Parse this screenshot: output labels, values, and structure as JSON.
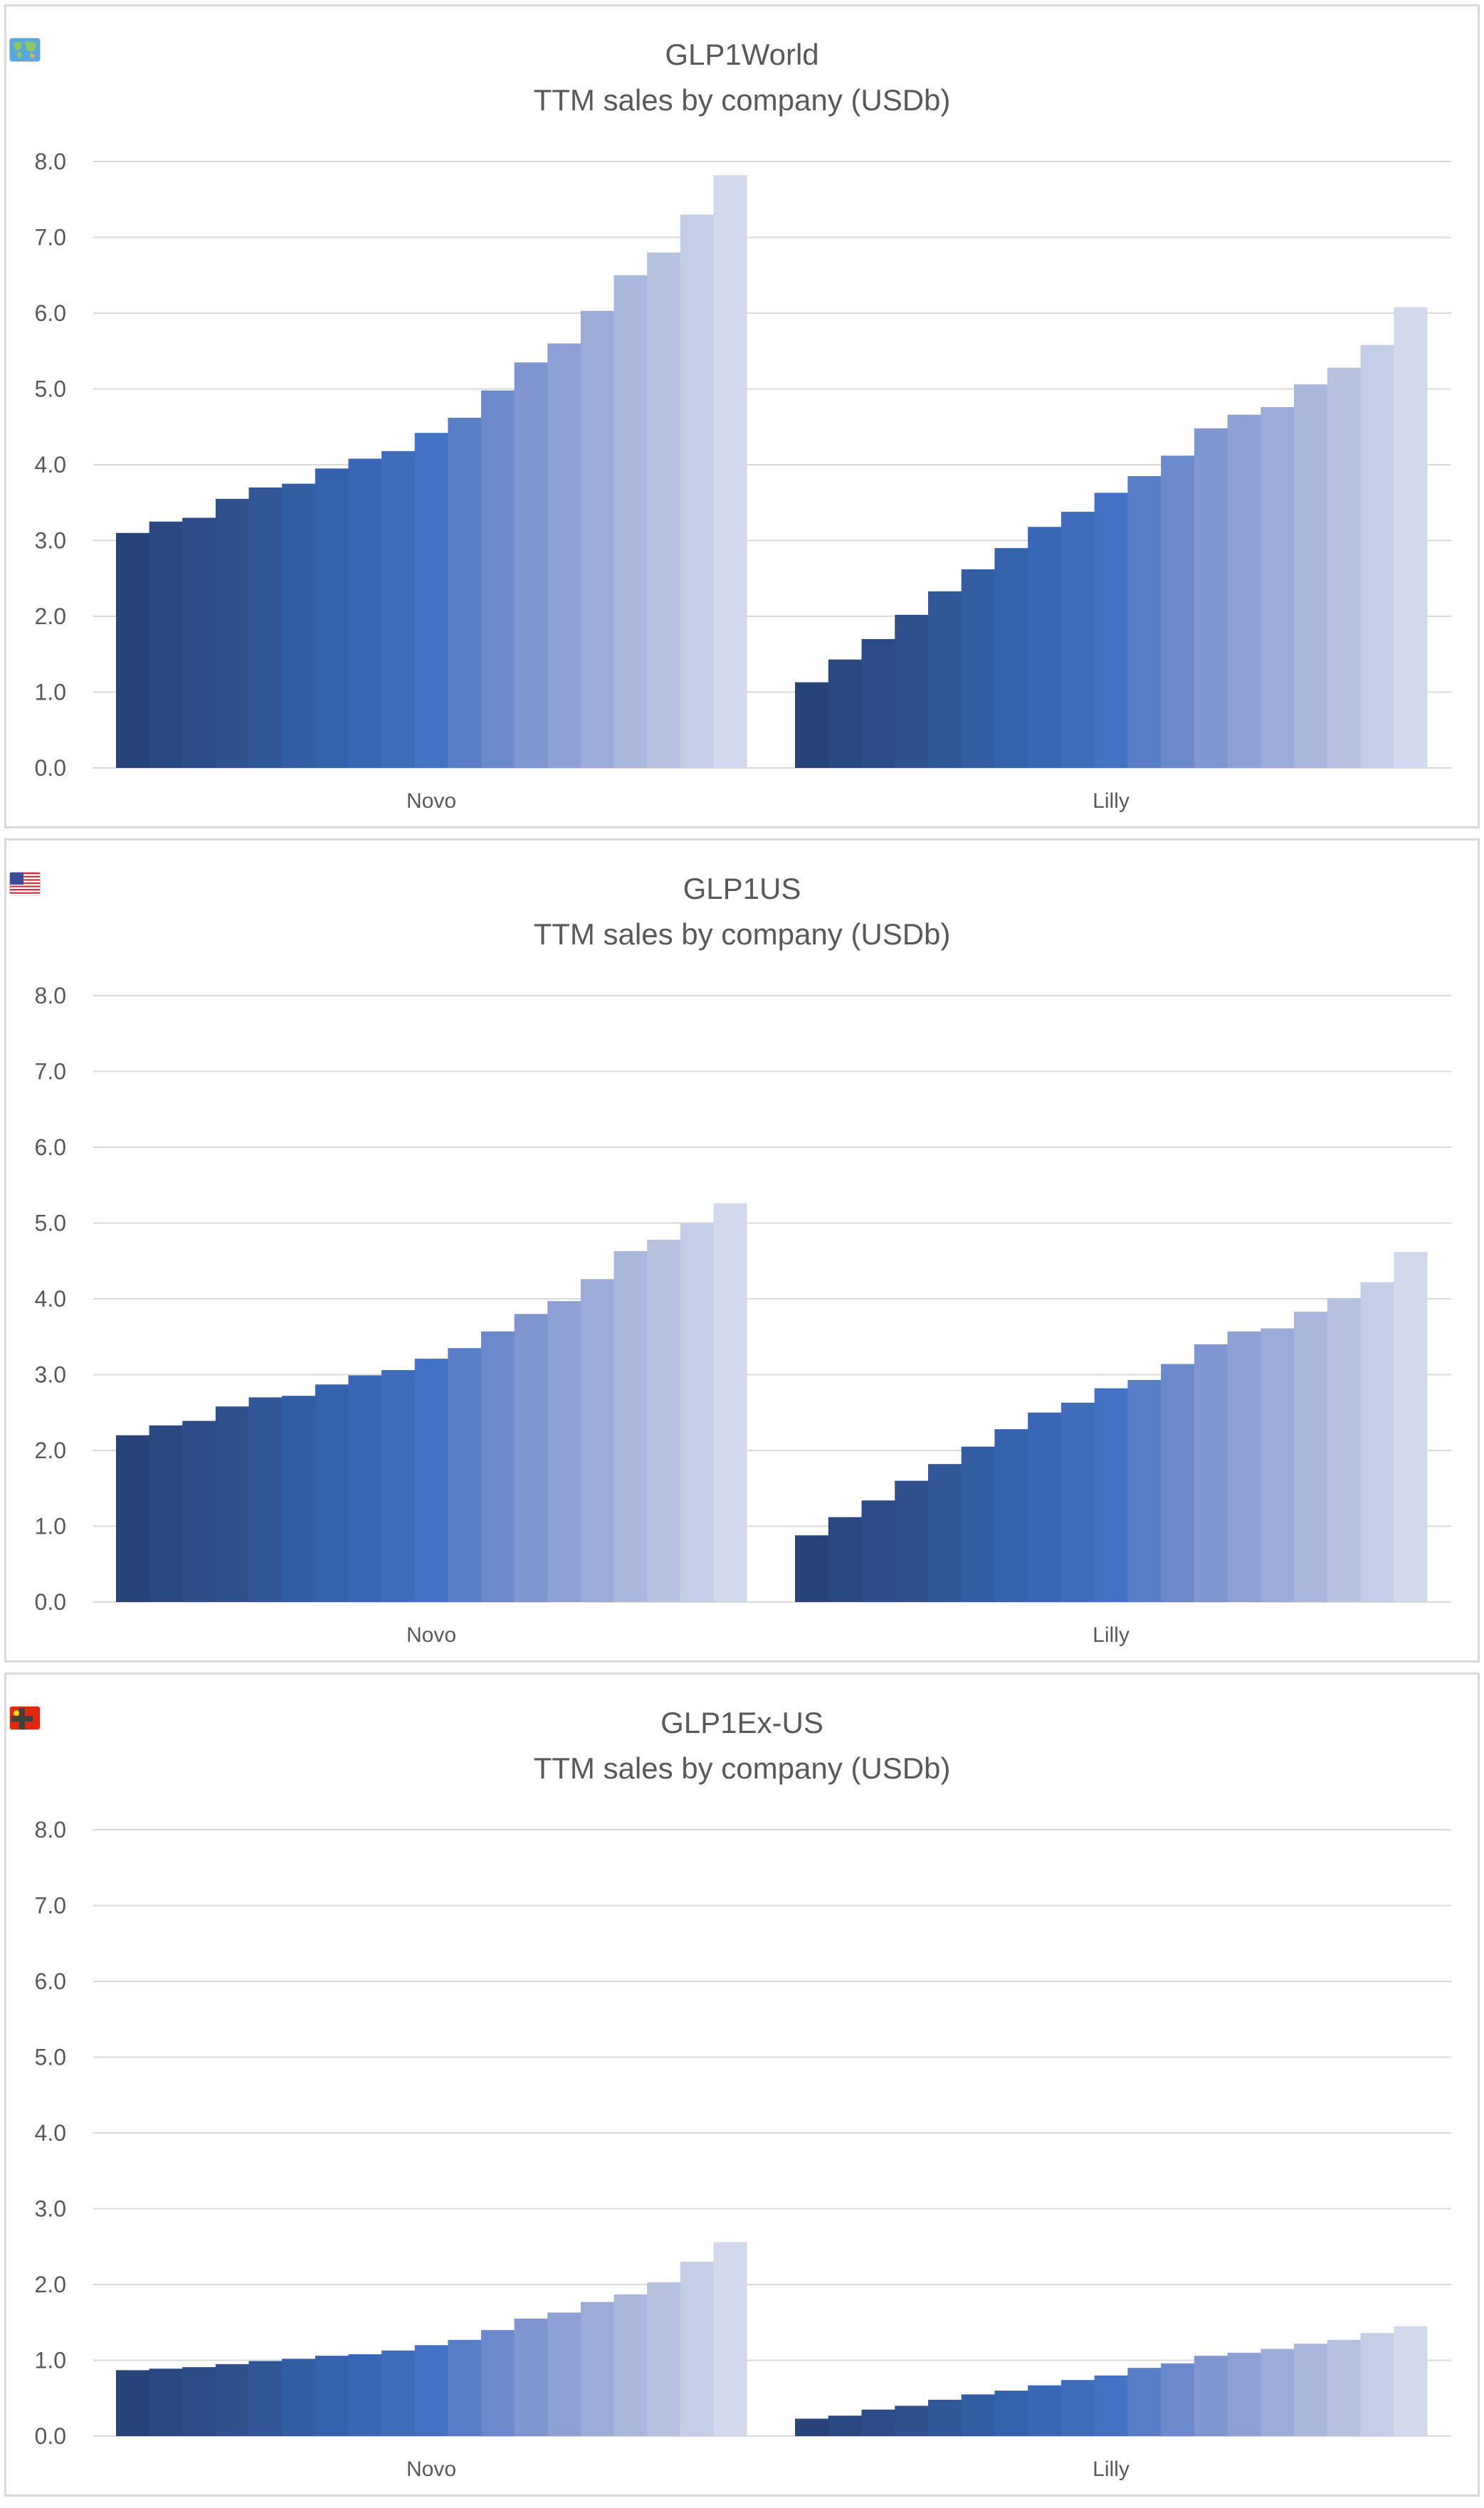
{
  "colors": {
    "bar_ramp": [
      "#264478",
      "#2f528f",
      "#3462ad",
      "#4472c4",
      "#7f96d0",
      "#a9b7dc",
      "#d3d9ec"
    ],
    "grid": "#d9d9d9",
    "text": "#595959"
  },
  "chart_data": [
    {
      "type": "bar",
      "title_prefix": "GLP1",
      "title_icons": [
        "world-map-icon"
      ],
      "title_suffix": "World",
      "subtitle": "TTM sales by company (USDb)",
      "categories": [
        "Novo",
        "Lilly"
      ],
      "ylim": [
        0,
        8
      ],
      "yticks": [
        "0.0",
        "1.0",
        "2.0",
        "3.0",
        "4.0",
        "5.0",
        "6.0",
        "7.0",
        "8.0"
      ],
      "grid": true,
      "series_values": {
        "Novo": [
          3.1,
          3.25,
          3.3,
          3.55,
          3.7,
          3.75,
          3.95,
          4.08,
          4.18,
          4.42,
          4.62,
          4.98,
          5.35,
          5.6,
          6.03,
          6.5,
          6.8,
          7.3,
          7.82
        ],
        "Lilly": [
          1.13,
          1.43,
          1.7,
          2.02,
          2.33,
          2.62,
          2.9,
          3.18,
          3.38,
          3.63,
          3.85,
          4.12,
          4.48,
          4.66,
          4.76,
          5.06,
          5.28,
          5.58,
          6.08
        ]
      }
    },
    {
      "type": "bar",
      "title_prefix": "GLP1",
      "title_icons": [
        "us-flag-icon"
      ],
      "title_suffix": "US",
      "subtitle": "TTM sales by company (USDb)",
      "categories": [
        "Novo",
        "Lilly"
      ],
      "ylim": [
        0,
        8
      ],
      "yticks": [
        "0.0",
        "1.0",
        "2.0",
        "3.0",
        "4.0",
        "5.0",
        "6.0",
        "7.0",
        "8.0"
      ],
      "grid": true,
      "series_values": {
        "Novo": [
          2.2,
          2.33,
          2.39,
          2.58,
          2.7,
          2.72,
          2.87,
          2.99,
          3.06,
          3.21,
          3.35,
          3.57,
          3.8,
          3.97,
          4.26,
          4.63,
          4.78,
          5.0,
          5.26
        ],
        "Lilly": [
          0.88,
          1.12,
          1.34,
          1.6,
          1.82,
          2.05,
          2.28,
          2.5,
          2.63,
          2.82,
          2.93,
          3.14,
          3.4,
          3.57,
          3.61,
          3.83,
          4.01,
          4.22,
          4.62
        ]
      }
    },
    {
      "type": "bar",
      "title_prefix": "GLP1",
      "title_icons": [
        "eu-flag-icon",
        "china-flag-icon",
        "plus-icon"
      ],
      "title_suffix": "Ex-US",
      "subtitle": "TTM sales by company (USDb)",
      "categories": [
        "Novo",
        "Lilly"
      ],
      "ylim": [
        0,
        8
      ],
      "yticks": [
        "0.0",
        "1.0",
        "2.0",
        "3.0",
        "4.0",
        "5.0",
        "6.0",
        "7.0",
        "8.0"
      ],
      "grid": true,
      "series_values": {
        "Novo": [
          0.87,
          0.89,
          0.91,
          0.95,
          0.99,
          1.02,
          1.06,
          1.08,
          1.13,
          1.2,
          1.27,
          1.4,
          1.55,
          1.63,
          1.77,
          1.87,
          2.03,
          2.3,
          2.56
        ],
        "Lilly": [
          0.23,
          0.27,
          0.35,
          0.4,
          0.48,
          0.55,
          0.6,
          0.67,
          0.74,
          0.8,
          0.9,
          0.96,
          1.06,
          1.1,
          1.15,
          1.22,
          1.27,
          1.36,
          1.45
        ]
      }
    }
  ]
}
